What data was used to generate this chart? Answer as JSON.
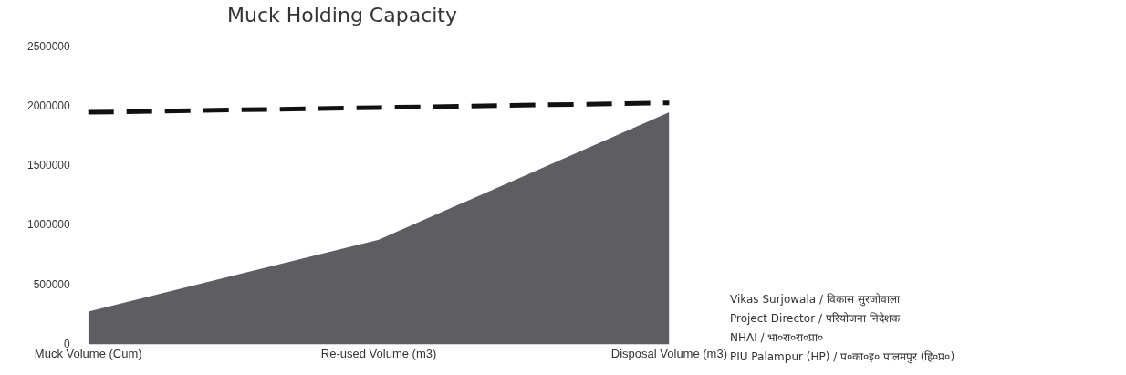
{
  "chart_data": {
    "type": "area",
    "title": "Muck Holding Capacity",
    "categories": [
      "Muck Volume (Cum)",
      "Re-used Volume (m3)",
      "Disposal Volume (m3)"
    ],
    "series": [
      {
        "color": "#5e5e62",
        "values": [
          275000,
          880000,
          1950000
        ]
      },
      {
        "type": "line",
        "color": "#111111",
        "line_style": "dashed",
        "values": [
          1950000,
          1990000,
          2030000
        ]
      }
    ],
    "ylim": [
      0,
      2500000
    ],
    "yticks": [
      0,
      500000,
      1000000,
      1500000,
      2000000,
      2500000
    ],
    "grid": false,
    "legend": false,
    "marker": "none",
    "annotations": [
      "Vikas Surjowala / विकास सुरजोवाला",
      "Project Director / परियोजना निदेशक",
      "NHAI / भा०रा०रा०प्रा०",
      "PIU Palampur (HP) / प०का०इ० पालमपुर (हि०प्र०)"
    ]
  }
}
